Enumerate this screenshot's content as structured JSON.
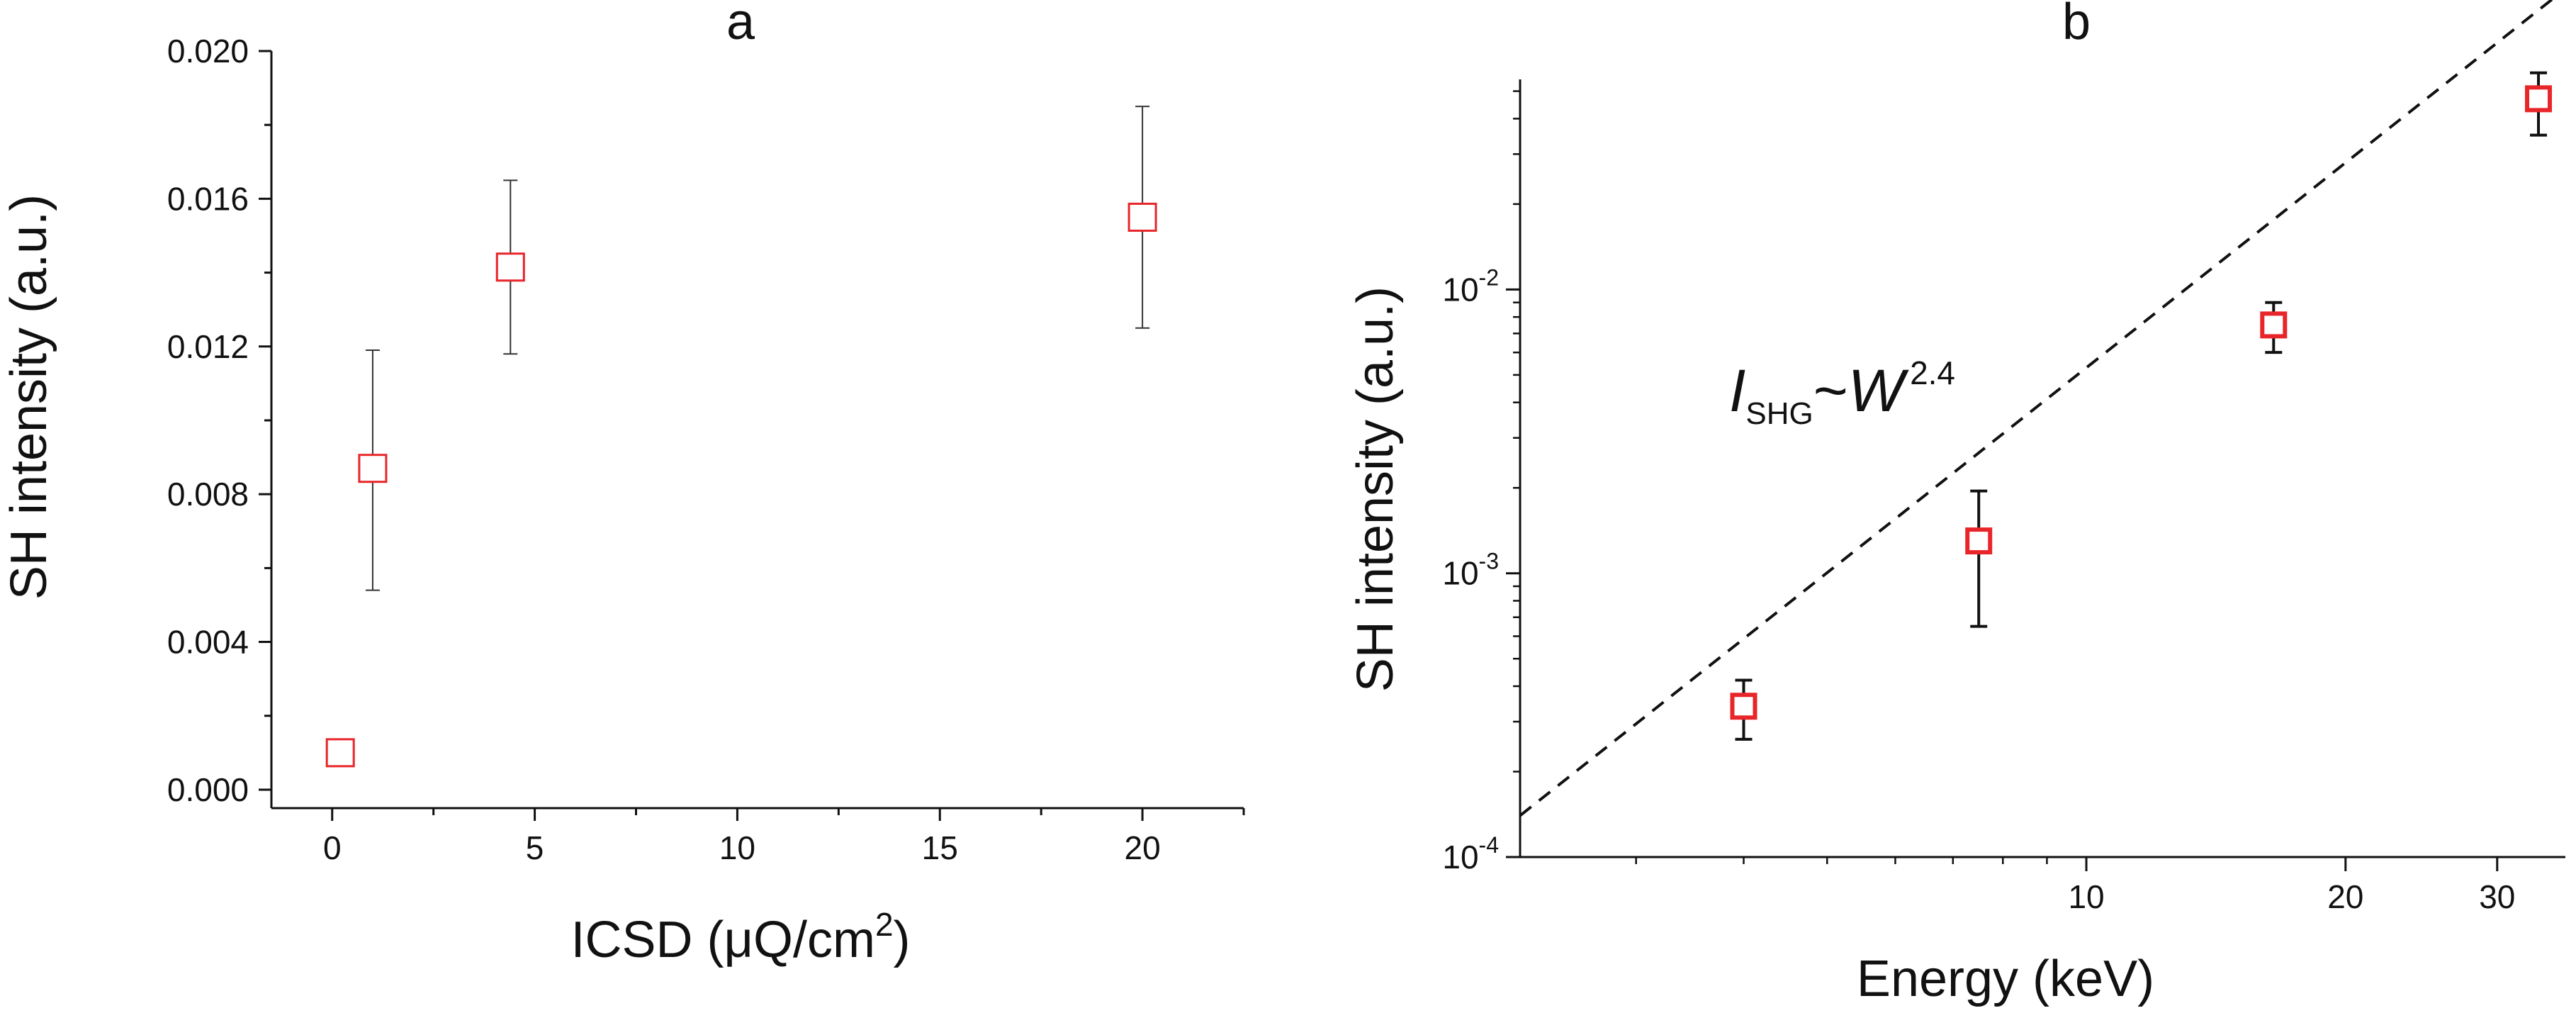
{
  "chart_data": [
    {
      "type": "scatter",
      "panel_label": "a",
      "xlabel": "ICSD (μQ/cm",
      "xlabel_sup": "2",
      "xlabel_end": ")",
      "ylabel": "SH intensity (a.u.)",
      "xlim": [
        -1.5,
        22.5
      ],
      "ylim": [
        -0.0005,
        0.02
      ],
      "x_ticks": [
        0,
        5,
        10,
        15,
        20
      ],
      "x_tick_labels": [
        "0",
        "5",
        "10",
        "15",
        "20"
      ],
      "y_ticks": [
        0.0,
        0.004,
        0.008,
        0.012,
        0.016,
        0.02
      ],
      "y_tick_labels": [
        "0.000",
        "0.004",
        "0.008",
        "0.012",
        "0.016",
        "0.020"
      ],
      "marker": "open-square",
      "marker_color": "#e8262a",
      "points": [
        {
          "x": 0.2,
          "y": 0.001,
          "err_low": 0.00065,
          "err_high": 0.00135
        },
        {
          "x": 1.0,
          "y": 0.0087,
          "err_low": 0.0054,
          "err_high": 0.0119
        },
        {
          "x": 4.4,
          "y": 0.01415,
          "err_low": 0.0118,
          "err_high": 0.0165
        },
        {
          "x": 20.0,
          "y": 0.0155,
          "err_low": 0.0125,
          "err_high": 0.0185
        }
      ]
    },
    {
      "type": "scatter",
      "panel_label": "b",
      "xscale": "log",
      "yscale": "log",
      "xlabel": "Energy (keV)",
      "ylabel": "SH intensity (a.u.)",
      "xlim": [
        2.2,
        36
      ],
      "ylim": [
        0.0001,
        0.055
      ],
      "x_tick_labels": [
        "10",
        "20",
        "30"
      ],
      "x_ticks": [
        10,
        20,
        30
      ],
      "x_minor_ticks": [
        3,
        4,
        5,
        6,
        7,
        8,
        9
      ],
      "y_ticks": [
        0.0001,
        0.001,
        0.01
      ],
      "y_tick_labels": [
        {
          "base": "10",
          "exp": "-4"
        },
        {
          "base": "10",
          "exp": "-3"
        },
        {
          "base": "10",
          "exp": "-2"
        }
      ],
      "marker": "open-square",
      "marker_color": "#e8262a",
      "points": [
        {
          "x": 4.0,
          "y": 0.00034,
          "err_low": 0.00026,
          "err_high": 0.00042
        },
        {
          "x": 7.5,
          "y": 0.0013,
          "err_low": 0.00065,
          "err_high": 0.00195
        },
        {
          "x": 16.5,
          "y": 0.0075,
          "err_low": 0.006,
          "err_high": 0.009
        },
        {
          "x": 33.5,
          "y": 0.047,
          "err_low": 0.035,
          "err_high": 0.058
        }
      ],
      "fit_line": {
        "exponent": 2.4,
        "y_at_xmin": 0.00014,
        "style": "dashed"
      },
      "annotation": {
        "I": "I",
        "sub": "SHG",
        "tilde": "~",
        "W": "W",
        "sup": "2.4"
      }
    }
  ]
}
